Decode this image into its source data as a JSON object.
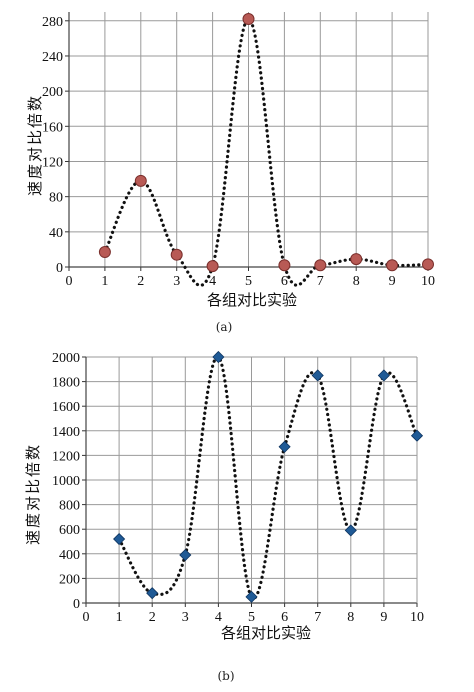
{
  "chart_data": [
    {
      "type": "scatter",
      "panel": "(a)",
      "xlabel": "各组对比实验",
      "ylabel": "速度对比倍数",
      "xlim": [
        0,
        10
      ],
      "ylim": [
        0,
        290
      ],
      "x_ticks": [
        "0",
        "1",
        "2",
        "3",
        "4",
        "5",
        "6",
        "7",
        "8",
        "9",
        "10"
      ],
      "y_ticks": [
        "0",
        "40",
        "80",
        "120",
        "160",
        "200",
        "240",
        "280"
      ],
      "y_tick_values": [
        0,
        40,
        80,
        120,
        160,
        200,
        240,
        280
      ],
      "grid": true,
      "connector": "dotted",
      "marker_color": "#b85a55",
      "series": [
        {
          "x": [
            1,
            2,
            3,
            4,
            5,
            6,
            7,
            8,
            9,
            10
          ],
          "y": [
            17,
            98,
            14,
            1,
            282,
            2,
            2,
            9,
            2,
            3
          ]
        }
      ]
    },
    {
      "type": "scatter",
      "panel": "(b)",
      "xlabel": "各组对比实验",
      "ylabel": "速度对比倍数",
      "xlim": [
        0,
        10
      ],
      "ylim": [
        0,
        2000
      ],
      "x_ticks": [
        "0",
        "1",
        "2",
        "3",
        "4",
        "5",
        "6",
        "7",
        "8",
        "9",
        "10"
      ],
      "y_ticks": [
        "0",
        "200",
        "400",
        "600",
        "800",
        "1000",
        "1200",
        "1400",
        "1600",
        "1800",
        "2000"
      ],
      "y_tick_values": [
        0,
        200,
        400,
        600,
        800,
        1000,
        1200,
        1400,
        1600,
        1800,
        2000
      ],
      "grid": true,
      "connector": "dotted",
      "marker_color": "#1f5a96",
      "series": [
        {
          "x": [
            1,
            2,
            3,
            4,
            5,
            6,
            7,
            8,
            9,
            10
          ],
          "y": [
            520,
            80,
            390,
            2000,
            50,
            1270,
            1850,
            590,
            1850,
            1360
          ]
        }
      ]
    }
  ]
}
